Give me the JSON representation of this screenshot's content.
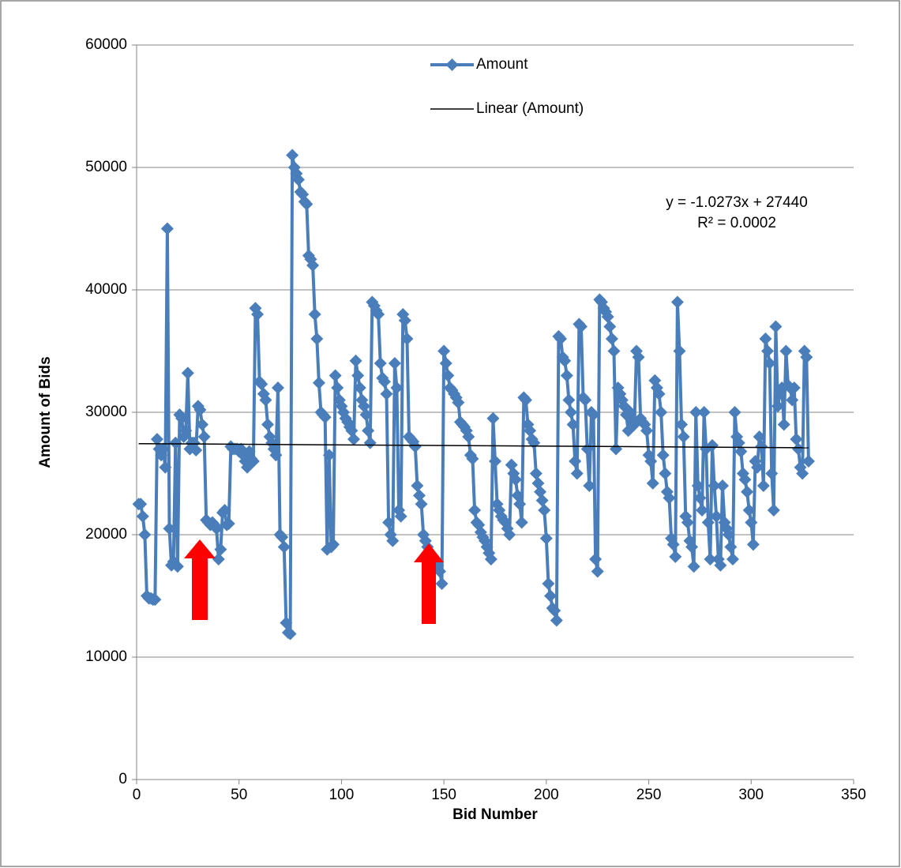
{
  "chart_data": {
    "type": "line",
    "xlabel": "Bid Number",
    "ylabel": "Amount of Bids",
    "xlim": [
      0,
      350
    ],
    "xticks": [
      0,
      50,
      100,
      150,
      200,
      250,
      300,
      350
    ],
    "ylim": [
      0,
      60000
    ],
    "yticks": [
      0,
      10000,
      20000,
      30000,
      40000,
      50000,
      60000
    ],
    "grid": true,
    "legend": "top",
    "annotations": [
      "y = -1.0273x + 27440",
      "R² = 0.0002"
    ],
    "series": [
      {
        "name": "Amount",
        "color": "#4a7ebb",
        "marker": "diamond",
        "x": [
          1,
          2,
          3,
          4,
          5,
          6,
          7,
          8,
          9,
          10,
          11,
          12,
          13,
          14,
          15,
          16,
          17,
          18,
          19,
          20,
          21,
          22,
          23,
          24,
          25,
          26,
          27,
          28,
          29,
          30,
          31,
          32,
          33,
          34,
          35,
          36,
          37,
          38,
          39,
          40,
          41,
          42,
          43,
          44,
          45,
          46,
          47,
          48,
          49,
          50,
          51,
          52,
          53,
          54,
          55,
          56,
          57,
          58,
          59,
          60,
          61,
          62,
          63,
          64,
          65,
          66,
          67,
          68,
          69,
          70,
          71,
          72,
          73,
          74,
          75,
          76,
          77,
          78,
          79,
          80,
          81,
          82,
          83,
          84,
          85,
          86,
          87,
          88,
          89,
          90,
          91,
          92,
          93,
          94,
          95,
          96,
          97,
          98,
          99,
          100,
          101,
          102,
          103,
          104,
          105,
          106,
          107,
          108,
          109,
          110,
          111,
          112,
          113,
          114,
          115,
          116,
          117,
          118,
          119,
          120,
          121,
          122,
          123,
          124,
          125,
          126,
          127,
          128,
          129,
          130,
          131,
          132,
          133,
          134,
          135,
          136,
          137,
          138,
          139,
          140,
          141,
          142,
          143,
          144,
          145,
          146,
          147,
          148,
          149,
          150,
          151,
          152,
          153,
          154,
          155,
          156,
          157,
          158,
          159,
          160,
          161,
          162,
          163,
          164,
          165,
          166,
          167,
          168,
          169,
          170,
          171,
          172,
          173,
          174,
          175,
          176,
          177,
          178,
          179,
          180,
          181,
          182,
          183,
          184,
          185,
          186,
          187,
          188,
          189,
          190,
          191,
          192,
          193,
          194,
          195,
          196,
          197,
          198,
          199,
          200,
          201,
          202,
          203,
          204,
          205,
          206,
          207,
          208,
          209,
          210,
          211,
          212,
          213,
          214,
          215,
          216,
          217,
          218,
          219,
          220,
          221,
          222,
          223,
          224,
          225,
          226,
          227,
          228,
          229,
          230,
          231,
          232,
          233,
          234,
          235,
          236,
          237,
          238,
          239,
          240,
          241,
          242,
          243,
          244,
          245,
          246,
          247,
          248,
          249,
          250,
          251,
          252,
          253,
          254,
          255,
          256,
          257,
          258,
          259,
          260,
          261,
          262,
          263,
          264,
          265,
          266,
          267,
          268,
          269,
          270,
          271,
          272,
          273,
          274,
          275,
          276,
          277,
          278,
          279,
          280,
          281,
          282,
          283,
          284,
          285,
          286,
          287,
          288,
          289,
          290,
          291,
          292,
          293,
          294,
          295,
          296,
          297,
          298,
          299,
          300,
          301,
          302,
          303,
          304,
          305,
          306,
          307,
          308,
          309,
          310,
          311,
          312,
          313,
          314,
          315,
          316,
          317,
          318,
          319,
          320,
          321,
          322,
          323,
          324,
          325,
          326,
          327,
          328
        ],
        "values": [
          22500,
          22500,
          21500,
          20000,
          15000,
          14800,
          14800,
          14700,
          14700,
          27800,
          27000,
          26500,
          27000,
          25500,
          45000,
          20500,
          17500,
          17800,
          27500,
          17400,
          29800,
          29500,
          28000,
          28500,
          33200,
          27000,
          27500,
          27500,
          26900,
          30500,
          30200,
          29000,
          28000,
          21200,
          21000,
          20800,
          21000,
          20800,
          20500,
          18000,
          18800,
          21800,
          22000,
          20800,
          20900,
          27200,
          27000,
          27000,
          27000,
          26800,
          27000,
          26500,
          26000,
          25500,
          26800,
          26200,
          26000,
          38500,
          38000,
          32500,
          32300,
          31500,
          31000,
          29000,
          28000,
          27500,
          27000,
          26500,
          32000,
          20000,
          19800,
          19000,
          12800,
          12000,
          11900,
          51000,
          50000,
          49500,
          49000,
          48000,
          47800,
          47200,
          47000,
          42800,
          42500,
          42000,
          38000,
          36000,
          32400,
          30000,
          29800,
          29600,
          18800,
          26500,
          19000,
          19200,
          33000,
          32000,
          31000,
          30500,
          30000,
          29500,
          29200,
          28800,
          28500,
          27800,
          34200,
          33000,
          32000,
          31000,
          30500,
          29800,
          28500,
          27500,
          39000,
          38700,
          38300,
          38000,
          34000,
          32800,
          32500,
          31500,
          21000,
          20000,
          19500,
          34000,
          32000,
          22000,
          21500,
          38000,
          37500,
          36000,
          28000,
          27800,
          27600,
          27200,
          24000,
          23200,
          22500,
          20000,
          19500,
          19000,
          18500,
          18300,
          18000,
          17800,
          17500,
          17000,
          16000,
          35000,
          34000,
          33000,
          32000,
          31800,
          31500,
          31200,
          30800,
          29200,
          29000,
          28800,
          28500,
          28000,
          26500,
          26200,
          22000,
          21000,
          20800,
          20200,
          19800,
          19500,
          19000,
          18500,
          18000,
          29500,
          26000,
          22500,
          22000,
          21500,
          21200,
          21000,
          20500,
          20000,
          25700,
          25000,
          24500,
          23200,
          22500,
          21000,
          31200,
          31000,
          29000,
          28500,
          27800,
          27500,
          25000,
          24200,
          23500,
          22800,
          22000,
          19700,
          16000,
          15000,
          14000,
          13800,
          13000,
          36200,
          36000,
          34500,
          34200,
          33000,
          31000,
          30000,
          29000,
          26000,
          25000,
          37200,
          37000,
          31200,
          31000,
          27000,
          24000,
          30000,
          29800,
          18000,
          17000,
          39200,
          39000,
          38500,
          38200,
          37800,
          37000,
          36000,
          35000,
          27000,
          32000,
          31500,
          31000,
          30500,
          29800,
          28500,
          30000,
          29500,
          29000,
          35000,
          34500,
          29500,
          29200,
          29000,
          28500,
          26500,
          26000,
          24200,
          32600,
          32000,
          31500,
          30000,
          26500,
          25000,
          23500,
          23000,
          19700,
          19200,
          18200,
          39000,
          35000,
          29000,
          28000,
          21500,
          21000,
          19500,
          19000,
          17400,
          30000,
          24000,
          23000,
          22000,
          30000,
          27000,
          21000,
          18000,
          27300,
          24000,
          21500,
          18000,
          17500,
          24000,
          21000,
          20500,
          20000,
          19000,
          18000,
          30000,
          28000,
          27500,
          26800,
          25000,
          24500,
          23500,
          22000,
          21000,
          19200,
          26000,
          25500,
          28000,
          27200,
          24000,
          36000,
          35000,
          34000,
          25000,
          22000,
          37000,
          30500,
          31500,
          32000,
          29000,
          35000,
          32200,
          32000,
          31000,
          32000,
          27800,
          27000,
          25500,
          25000,
          35000,
          34500,
          26000
        ]
      },
      {
        "name": "Linear (Amount)",
        "color": "#000000",
        "x": [
          1,
          328
        ],
        "values": [
          27439,
          27103
        ]
      }
    ]
  }
}
